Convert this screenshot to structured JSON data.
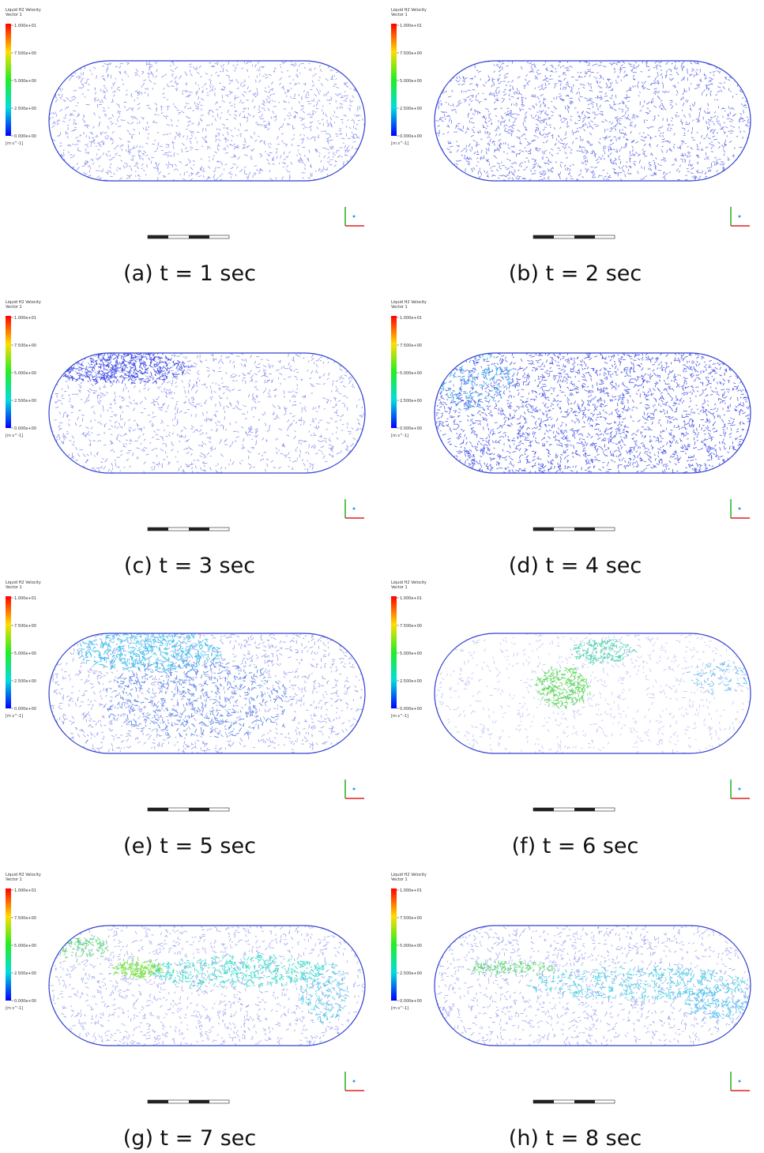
{
  "figure": {
    "panels": [
      {
        "caption": "(a) t = 1 sec",
        "legend": {
          "title": "Liquid H2 Velocity",
          "subtitle": "Vector 1",
          "ticks": [
            "1.000e+01",
            "7.500e+00",
            "5.000e+00",
            "2.500e+00",
            "0.000e+00"
          ],
          "unit": "[m s^-1]"
        }
      },
      {
        "caption": "(b) t = 2 sec",
        "legend": {
          "title": "Liquid H2 Velocity",
          "subtitle": "Vector 1",
          "ticks": [
            "1.000e+01",
            "7.500e+00",
            "5.000e+00",
            "2.500e+00",
            "0.000e+00"
          ],
          "unit": "[m s^-1]"
        }
      },
      {
        "caption": "(c) t = 3 sec",
        "legend": {
          "title": "Liquid H2 Velocity",
          "subtitle": "Vector 1",
          "ticks": [
            "1.000e+01",
            "7.500e+00",
            "5.000e+00",
            "2.500e+00",
            "0.000e+00"
          ],
          "unit": "[m s^-1]"
        }
      },
      {
        "caption": "(d) t = 4 sec",
        "legend": {
          "title": "Liquid H2 Velocity",
          "subtitle": "Vector 1",
          "ticks": [
            "1.000e+01",
            "7.500e+00",
            "5.000e+00",
            "2.500e+00",
            "0.000e+00"
          ],
          "unit": "[m s^-1]"
        }
      },
      {
        "caption": "(e) t = 5 sec",
        "legend": {
          "title": "Liquid H2 Velocity",
          "subtitle": "Vector 1",
          "ticks": [
            "1.000e+01",
            "7.500e+00",
            "5.000e+00",
            "2.500e+00",
            "0.000e+00"
          ],
          "unit": "[m s^-1]"
        }
      },
      {
        "caption": "(f) t = 6 sec",
        "legend": {
          "title": "Liquid H2 Velocity",
          "subtitle": "Vector 1",
          "ticks": [
            "1.000e+01",
            "7.500e+00",
            "5.000e+00",
            "2.500e+00",
            "0.000e+00"
          ],
          "unit": "[m s^-1]"
        }
      },
      {
        "caption": "(g) t = 7 sec",
        "legend": {
          "title": "Liquid H2 Velocity",
          "subtitle": "Vector 1",
          "ticks": [
            "1.000e+01",
            "7.500e+00",
            "5.000e+00",
            "2.500e+00",
            "0.000e+00"
          ],
          "unit": "[m s^-1]"
        }
      },
      {
        "caption": "(h) t = 8 sec",
        "legend": {
          "title": "Liquid H2 Velocity",
          "subtitle": "Vector 1",
          "ticks": [
            "1.000e+01",
            "7.500e+00",
            "5.000e+00",
            "2.500e+00",
            "0.000e+00"
          ],
          "unit": "[m s^-1]"
        }
      }
    ]
  }
}
